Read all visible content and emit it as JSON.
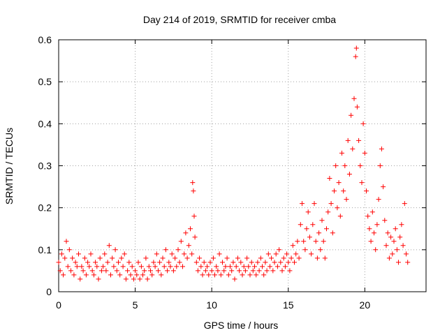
{
  "chart_data": {
    "type": "scatter",
    "title": "Day 214 of 2019, SRMTID for receiver cmba",
    "xlabel": "GPS time / hours",
    "ylabel": "SRMTID / TECUs",
    "xlim": [
      0,
      24
    ],
    "ylim": [
      0,
      0.6
    ],
    "xticks": [
      "0",
      "5",
      "10",
      "15",
      "20"
    ],
    "yticks": [
      "0",
      "0.1",
      "0.2",
      "0.3",
      "0.4",
      "0.5",
      "0.6"
    ],
    "grid": true,
    "marker": "+",
    "color": "#ff0000",
    "series": [
      {
        "name": "SRMTID",
        "points": [
          [
            0.0,
            0.07
          ],
          [
            0.1,
            0.05
          ],
          [
            0.2,
            0.09
          ],
          [
            0.3,
            0.04
          ],
          [
            0.4,
            0.08
          ],
          [
            0.5,
            0.12
          ],
          [
            0.6,
            0.06
          ],
          [
            0.7,
            0.1
          ],
          [
            0.8,
            0.05
          ],
          [
            0.9,
            0.08
          ],
          [
            1.0,
            0.04
          ],
          [
            1.1,
            0.07
          ],
          [
            1.2,
            0.06
          ],
          [
            1.3,
            0.09
          ],
          [
            1.4,
            0.03
          ],
          [
            1.5,
            0.06
          ],
          [
            1.6,
            0.05
          ],
          [
            1.7,
            0.08
          ],
          [
            1.8,
            0.04
          ],
          [
            1.9,
            0.07
          ],
          [
            2.0,
            0.06
          ],
          [
            2.1,
            0.09
          ],
          [
            2.2,
            0.05
          ],
          [
            2.3,
            0.04
          ],
          [
            2.4,
            0.07
          ],
          [
            2.5,
            0.06
          ],
          [
            2.6,
            0.03
          ],
          [
            2.7,
            0.08
          ],
          [
            2.8,
            0.05
          ],
          [
            2.9,
            0.06
          ],
          [
            3.0,
            0.09
          ],
          [
            3.1,
            0.05
          ],
          [
            3.2,
            0.07
          ],
          [
            3.3,
            0.11
          ],
          [
            3.4,
            0.04
          ],
          [
            3.5,
            0.08
          ],
          [
            3.6,
            0.06
          ],
          [
            3.7,
            0.1
          ],
          [
            3.8,
            0.05
          ],
          [
            3.9,
            0.07
          ],
          [
            4.0,
            0.04
          ],
          [
            4.1,
            0.08
          ],
          [
            4.2,
            0.06
          ],
          [
            4.3,
            0.09
          ],
          [
            4.4,
            0.03
          ],
          [
            4.5,
            0.05
          ],
          [
            4.6,
            0.07
          ],
          [
            4.7,
            0.04
          ],
          [
            4.8,
            0.06
          ],
          [
            4.9,
            0.03
          ],
          [
            5.0,
            0.05
          ],
          [
            5.1,
            0.04
          ],
          [
            5.2,
            0.07
          ],
          [
            5.3,
            0.03
          ],
          [
            5.4,
            0.06
          ],
          [
            5.5,
            0.04
          ],
          [
            5.6,
            0.05
          ],
          [
            5.7,
            0.08
          ],
          [
            5.8,
            0.03
          ],
          [
            5.9,
            0.06
          ],
          [
            6.0,
            0.05
          ],
          [
            6.1,
            0.04
          ],
          [
            6.2,
            0.07
          ],
          [
            6.3,
            0.06
          ],
          [
            6.4,
            0.09
          ],
          [
            6.5,
            0.05
          ],
          [
            6.6,
            0.07
          ],
          [
            6.7,
            0.04
          ],
          [
            6.8,
            0.08
          ],
          [
            6.9,
            0.06
          ],
          [
            7.0,
            0.1
          ],
          [
            7.1,
            0.05
          ],
          [
            7.2,
            0.07
          ],
          [
            7.3,
            0.06
          ],
          [
            7.4,
            0.09
          ],
          [
            7.5,
            0.05
          ],
          [
            7.6,
            0.08
          ],
          [
            7.7,
            0.06
          ],
          [
            7.8,
            0.1
          ],
          [
            7.9,
            0.07
          ],
          [
            8.0,
            0.12
          ],
          [
            8.1,
            0.06
          ],
          [
            8.2,
            0.09
          ],
          [
            8.3,
            0.14
          ],
          [
            8.4,
            0.08
          ],
          [
            8.5,
            0.11
          ],
          [
            8.6,
            0.15
          ],
          [
            8.7,
            0.09
          ],
          [
            8.75,
            0.26
          ],
          [
            8.8,
            0.24
          ],
          [
            8.85,
            0.18
          ],
          [
            8.9,
            0.13
          ],
          [
            9.0,
            0.07
          ],
          [
            9.1,
            0.05
          ],
          [
            9.2,
            0.08
          ],
          [
            9.3,
            0.06
          ],
          [
            9.4,
            0.04
          ],
          [
            9.5,
            0.07
          ],
          [
            9.6,
            0.05
          ],
          [
            9.7,
            0.06
          ],
          [
            9.8,
            0.04
          ],
          [
            9.9,
            0.07
          ],
          [
            10.0,
            0.05
          ],
          [
            10.1,
            0.08
          ],
          [
            10.2,
            0.04
          ],
          [
            10.3,
            0.06
          ],
          [
            10.4,
            0.05
          ],
          [
            10.5,
            0.09
          ],
          [
            10.6,
            0.04
          ],
          [
            10.7,
            0.07
          ],
          [
            10.8,
            0.05
          ],
          [
            10.9,
            0.06
          ],
          [
            11.0,
            0.08
          ],
          [
            11.1,
            0.04
          ],
          [
            11.2,
            0.06
          ],
          [
            11.3,
            0.05
          ],
          [
            11.4,
            0.07
          ],
          [
            11.5,
            0.03
          ],
          [
            11.6,
            0.06
          ],
          [
            11.7,
            0.08
          ],
          [
            11.8,
            0.05
          ],
          [
            11.9,
            0.07
          ],
          [
            12.0,
            0.04
          ],
          [
            12.1,
            0.06
          ],
          [
            12.2,
            0.05
          ],
          [
            12.3,
            0.08
          ],
          [
            12.4,
            0.06
          ],
          [
            12.5,
            0.04
          ],
          [
            12.6,
            0.07
          ],
          [
            12.7,
            0.05
          ],
          [
            12.8,
            0.06
          ],
          [
            12.9,
            0.04
          ],
          [
            13.0,
            0.07
          ],
          [
            13.1,
            0.05
          ],
          [
            13.2,
            0.08
          ],
          [
            13.3,
            0.06
          ],
          [
            13.4,
            0.04
          ],
          [
            13.5,
            0.07
          ],
          [
            13.6,
            0.05
          ],
          [
            13.7,
            0.09
          ],
          [
            13.8,
            0.06
          ],
          [
            13.9,
            0.08
          ],
          [
            14.0,
            0.05
          ],
          [
            14.1,
            0.07
          ],
          [
            14.2,
            0.09
          ],
          [
            14.3,
            0.06
          ],
          [
            14.4,
            0.1
          ],
          [
            14.5,
            0.07
          ],
          [
            14.6,
            0.05
          ],
          [
            14.7,
            0.08
          ],
          [
            14.8,
            0.06
          ],
          [
            14.9,
            0.09
          ],
          [
            15.0,
            0.07
          ],
          [
            15.1,
            0.05
          ],
          [
            15.2,
            0.08
          ],
          [
            15.3,
            0.11
          ],
          [
            15.4,
            0.07
          ],
          [
            15.5,
            0.09
          ],
          [
            15.6,
            0.12
          ],
          [
            15.7,
            0.08
          ],
          [
            15.8,
            0.16
          ],
          [
            15.9,
            0.21
          ],
          [
            16.0,
            0.12
          ],
          [
            16.1,
            0.1
          ],
          [
            16.2,
            0.15
          ],
          [
            16.3,
            0.19
          ],
          [
            16.4,
            0.13
          ],
          [
            16.5,
            0.09
          ],
          [
            16.6,
            0.16
          ],
          [
            16.7,
            0.21
          ],
          [
            16.8,
            0.12
          ],
          [
            16.9,
            0.08
          ],
          [
            17.0,
            0.14
          ],
          [
            17.1,
            0.1
          ],
          [
            17.2,
            0.17
          ],
          [
            17.3,
            0.12
          ],
          [
            17.4,
            0.08
          ],
          [
            17.5,
            0.15
          ],
          [
            17.6,
            0.19
          ],
          [
            17.7,
            0.27
          ],
          [
            17.8,
            0.21
          ],
          [
            17.9,
            0.14
          ],
          [
            18.0,
            0.24
          ],
          [
            18.1,
            0.3
          ],
          [
            18.2,
            0.2
          ],
          [
            18.3,
            0.26
          ],
          [
            18.4,
            0.18
          ],
          [
            18.5,
            0.33
          ],
          [
            18.6,
            0.24
          ],
          [
            18.7,
            0.3
          ],
          [
            18.8,
            0.22
          ],
          [
            18.9,
            0.36
          ],
          [
            19.0,
            0.28
          ],
          [
            19.1,
            0.42
          ],
          [
            19.2,
            0.34
          ],
          [
            19.3,
            0.46
          ],
          [
            19.4,
            0.56
          ],
          [
            19.45,
            0.58
          ],
          [
            19.5,
            0.44
          ],
          [
            19.6,
            0.36
          ],
          [
            19.7,
            0.3
          ],
          [
            19.8,
            0.26
          ],
          [
            19.9,
            0.4
          ],
          [
            20.0,
            0.33
          ],
          [
            20.1,
            0.24
          ],
          [
            20.2,
            0.18
          ],
          [
            20.3,
            0.15
          ],
          [
            20.4,
            0.12
          ],
          [
            20.5,
            0.19
          ],
          [
            20.6,
            0.14
          ],
          [
            20.7,
            0.1
          ],
          [
            20.8,
            0.16
          ],
          [
            20.9,
            0.22
          ],
          [
            21.0,
            0.3
          ],
          [
            21.1,
            0.34
          ],
          [
            21.2,
            0.25
          ],
          [
            21.3,
            0.17
          ],
          [
            21.4,
            0.11
          ],
          [
            21.5,
            0.14
          ],
          [
            21.6,
            0.08
          ],
          [
            21.7,
            0.13
          ],
          [
            21.8,
            0.09
          ],
          [
            21.9,
            0.12
          ],
          [
            22.0,
            0.15
          ],
          [
            22.1,
            0.1
          ],
          [
            22.2,
            0.07
          ],
          [
            22.3,
            0.13
          ],
          [
            22.4,
            0.16
          ],
          [
            22.5,
            0.11
          ],
          [
            22.6,
            0.21
          ],
          [
            22.7,
            0.09
          ],
          [
            22.8,
            0.07
          ]
        ]
      }
    ]
  }
}
